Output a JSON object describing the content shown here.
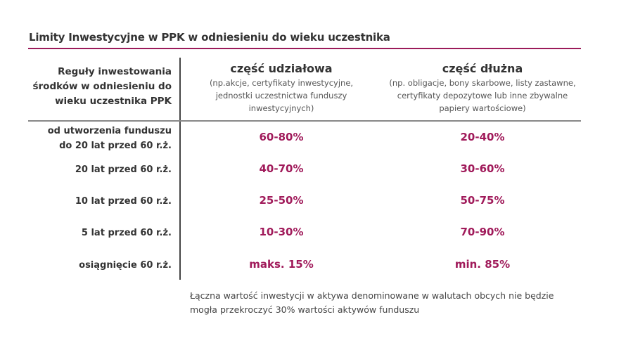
{
  "title": "Limity Inwestycyjne w PPK w odniesieniu do wieku uczestnika",
  "accent_color": "#a01a5a",
  "header": {
    "rules": [
      "Reguły inwestowania",
      "środków w odniesieniu do",
      "wieku uczestnika PPK"
    ],
    "equity": {
      "title": "część udziałowa",
      "sub": [
        "(np.akcje, certyfikaty inwestycyjne,",
        "jednostki uczestnictwa funduszy",
        "inwestycyjnych)"
      ]
    },
    "debt": {
      "title": "część dłużna",
      "sub": [
        "(np. obligacje, bony skarbowe, listy zastawne,",
        "certyfikaty depozytowe lub inne zbywalne",
        "papiery wartościowe)"
      ]
    }
  },
  "rows": [
    {
      "label": [
        "od utworzenia funduszu",
        "do 20 lat przed 60 r.ż."
      ],
      "equity": "60-80%",
      "debt": "20-40%"
    },
    {
      "label": [
        "20 lat przed 60 r.ż."
      ],
      "equity": "40-70%",
      "debt": "30-60%"
    },
    {
      "label": [
        "10 lat przed 60 r.ż."
      ],
      "equity": "25-50%",
      "debt": "50-75%"
    },
    {
      "label": [
        "5 lat przed 60 r.ż."
      ],
      "equity": "10-30%",
      "debt": "70-90%"
    },
    {
      "label": [
        "osiągnięcie 60 r.ż."
      ],
      "equity": "maks. 15%",
      "debt": "min. 85%"
    }
  ],
  "note": [
    "Łączna wartość inwestycji w aktywa denominowane w walutach obcych nie będzie",
    "mogła przekroczyć 30% wartości aktywów funduszu"
  ]
}
